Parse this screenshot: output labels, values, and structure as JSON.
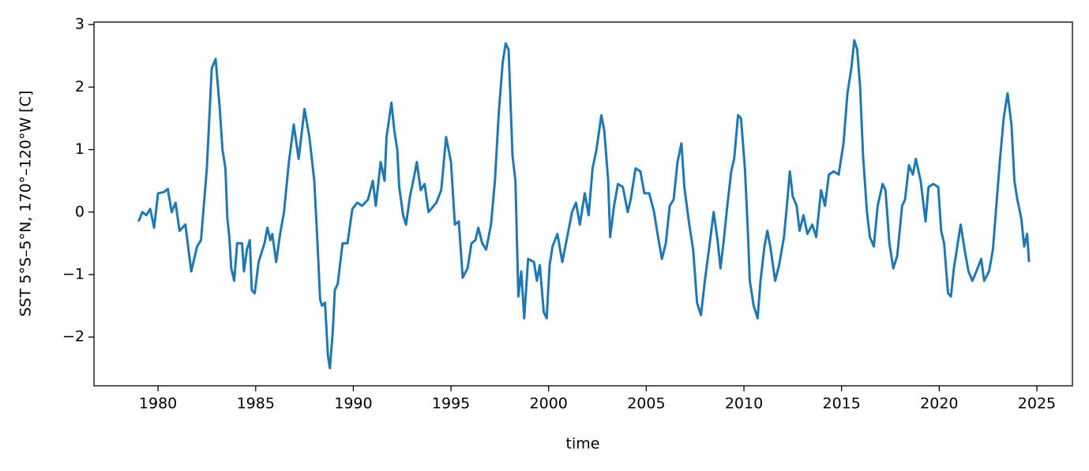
{
  "chart_data": {
    "type": "line",
    "xlabel": "time",
    "ylabel": "SST 5°S–5°N, 170°–120°W [C]",
    "color": "#1f77b4",
    "x": [
      1979.0,
      1979.2,
      1979.4,
      1979.6,
      1979.8,
      1980.0,
      1980.3,
      1980.5,
      1980.7,
      1980.9,
      1981.1,
      1981.4,
      1981.7,
      1982.0,
      1982.2,
      1982.5,
      1982.75,
      1982.95,
      1983.15,
      1983.3,
      1983.45,
      1983.55,
      1983.65,
      1983.75,
      1983.9,
      1984.05,
      1984.3,
      1984.4,
      1984.55,
      1984.7,
      1984.8,
      1984.95,
      1985.15,
      1985.45,
      1985.6,
      1985.75,
      1985.85,
      1986.05,
      1986.25,
      1986.45,
      1986.7,
      1986.95,
      1987.2,
      1987.5,
      1987.75,
      1988.0,
      1988.15,
      1988.3,
      1988.4,
      1988.55,
      1988.7,
      1988.8,
      1988.95,
      1989.05,
      1989.2,
      1989.45,
      1989.7,
      1989.95,
      1990.2,
      1990.45,
      1990.75,
      1991.0,
      1991.15,
      1991.4,
      1991.6,
      1991.7,
      1991.95,
      1992.1,
      1992.25,
      1992.35,
      1992.55,
      1992.7,
      1992.9,
      1993.1,
      1993.25,
      1993.45,
      1993.65,
      1993.85,
      1994.25,
      1994.5,
      1994.75,
      1995.0,
      1995.2,
      1995.4,
      1995.6,
      1995.85,
      1996.05,
      1996.25,
      1996.4,
      1996.6,
      1996.8,
      1997.05,
      1997.25,
      1997.45,
      1997.65,
      1997.8,
      1997.95,
      1998.15,
      1998.3,
      1998.45,
      1998.6,
      1998.75,
      1998.95,
      1999.25,
      1999.4,
      1999.55,
      1999.75,
      1999.9,
      2000.05,
      2000.2,
      2000.45,
      2000.7,
      2000.95,
      2001.2,
      2001.4,
      2001.6,
      2001.85,
      2002.05,
      2002.25,
      2002.45,
      2002.7,
      2002.85,
      2003.05,
      2003.15,
      2003.35,
      2003.55,
      2003.8,
      2004.05,
      2004.2,
      2004.45,
      2004.7,
      2004.9,
      2005.15,
      2005.4,
      2005.55,
      2005.8,
      2006.0,
      2006.2,
      2006.4,
      2006.6,
      2006.8,
      2006.95,
      2007.2,
      2007.4,
      2007.6,
      2007.8,
      2008.0,
      2008.25,
      2008.45,
      2008.65,
      2008.8,
      2008.95,
      2009.15,
      2009.35,
      2009.5,
      2009.7,
      2009.85,
      2010.05,
      2010.2,
      2010.3,
      2010.5,
      2010.7,
      2010.85,
      2011.05,
      2011.2,
      2011.35,
      2011.6,
      2011.8,
      2012.05,
      2012.2,
      2012.35,
      2012.5,
      2012.7,
      2012.85,
      2013.05,
      2013.25,
      2013.5,
      2013.7,
      2013.95,
      2014.15,
      2014.35,
      2014.6,
      2014.85,
      2015.1,
      2015.3,
      2015.5,
      2015.65,
      2015.8,
      2015.95,
      2016.1,
      2016.3,
      2016.45,
      2016.65,
      2016.85,
      2017.1,
      2017.25,
      2017.45,
      2017.65,
      2017.85,
      2018.1,
      2018.25,
      2018.45,
      2018.65,
      2018.8,
      2019.05,
      2019.3,
      2019.45,
      2019.7,
      2019.95,
      2020.1,
      2020.25,
      2020.45,
      2020.6,
      2020.75,
      2020.95,
      2021.1,
      2021.3,
      2021.5,
      2021.7,
      2021.9,
      2022.15,
      2022.3,
      2022.55,
      2022.75,
      2022.9,
      2023.1,
      2023.3,
      2023.5,
      2023.7,
      2023.85,
      2024.0,
      2024.2,
      2024.35,
      2024.5,
      2024.6
    ],
    "values": [
      -0.15,
      0.0,
      -0.05,
      0.05,
      -0.25,
      0.3,
      0.32,
      0.37,
      0.0,
      0.15,
      -0.3,
      -0.2,
      -0.95,
      -0.55,
      -0.45,
      0.7,
      2.3,
      2.45,
      1.7,
      1.0,
      0.7,
      -0.1,
      -0.4,
      -0.9,
      -1.1,
      -0.5,
      -0.5,
      -0.95,
      -0.6,
      -0.45,
      -1.25,
      -1.3,
      -0.8,
      -0.5,
      -0.25,
      -0.45,
      -0.35,
      -0.8,
      -0.35,
      0.0,
      0.8,
      1.4,
      0.85,
      1.65,
      1.2,
      0.5,
      -0.4,
      -1.4,
      -1.5,
      -1.45,
      -2.3,
      -2.5,
      -1.9,
      -1.25,
      -1.15,
      -0.5,
      -0.5,
      0.05,
      0.15,
      0.1,
      0.2,
      0.5,
      0.1,
      0.8,
      0.5,
      1.2,
      1.75,
      1.3,
      1.0,
      0.4,
      -0.05,
      -0.2,
      0.25,
      0.55,
      0.8,
      0.35,
      0.45,
      0.0,
      0.15,
      0.35,
      1.2,
      0.8,
      -0.2,
      -0.15,
      -1.05,
      -0.9,
      -0.5,
      -0.45,
      -0.25,
      -0.5,
      -0.6,
      -0.2,
      0.5,
      1.6,
      2.4,
      2.7,
      2.6,
      0.9,
      0.5,
      -1.35,
      -0.95,
      -1.7,
      -0.75,
      -0.8,
      -1.1,
      -0.85,
      -1.6,
      -1.7,
      -0.85,
      -0.55,
      -0.35,
      -0.8,
      -0.4,
      0.0,
      0.15,
      -0.2,
      0.3,
      -0.05,
      0.7,
      1.0,
      1.55,
      1.3,
      0.5,
      -0.4,
      0.1,
      0.45,
      0.4,
      0.0,
      0.2,
      0.7,
      0.65,
      0.3,
      0.3,
      0.0,
      -0.3,
      -0.75,
      -0.5,
      0.1,
      0.2,
      0.8,
      1.1,
      0.4,
      -0.2,
      -0.6,
      -1.45,
      -1.65,
      -1.1,
      -0.5,
      0.0,
      -0.45,
      -0.9,
      -0.5,
      0.1,
      0.65,
      0.85,
      1.55,
      1.5,
      0.7,
      -0.3,
      -1.1,
      -1.5,
      -1.7,
      -1.1,
      -0.55,
      -0.3,
      -0.55,
      -1.1,
      -0.85,
      -0.4,
      0.1,
      0.65,
      0.25,
      0.1,
      -0.3,
      -0.05,
      -0.35,
      -0.2,
      -0.4,
      0.35,
      0.1,
      0.6,
      0.65,
      0.6,
      1.1,
      1.9,
      2.3,
      2.75,
      2.6,
      2.0,
      0.9,
      0.0,
      -0.4,
      -0.55,
      0.1,
      0.45,
      0.35,
      -0.5,
      -0.9,
      -0.7,
      0.1,
      0.2,
      0.75,
      0.6,
      0.85,
      0.5,
      -0.15,
      0.4,
      0.45,
      0.4,
      -0.3,
      -0.5,
      -1.3,
      -1.35,
      -0.9,
      -0.5,
      -0.2,
      -0.6,
      -0.95,
      -1.1,
      -0.95,
      -0.75,
      -1.1,
      -0.95,
      -0.6,
      0.0,
      0.8,
      1.5,
      1.9,
      1.4,
      0.5,
      0.2,
      -0.1,
      -0.55,
      -0.35,
      -0.8
    ],
    "xlim": [
      1976.72,
      2026.82
    ],
    "ylim": [
      -2.78,
      3.04
    ],
    "xticks": [
      1980,
      1985,
      1990,
      1995,
      2000,
      2005,
      2010,
      2015,
      2020,
      2025
    ],
    "yticks": [
      {
        "value": -2,
        "label": "−2"
      },
      {
        "value": -1,
        "label": "−1"
      },
      0,
      1,
      2,
      3
    ],
    "grid": false
  }
}
